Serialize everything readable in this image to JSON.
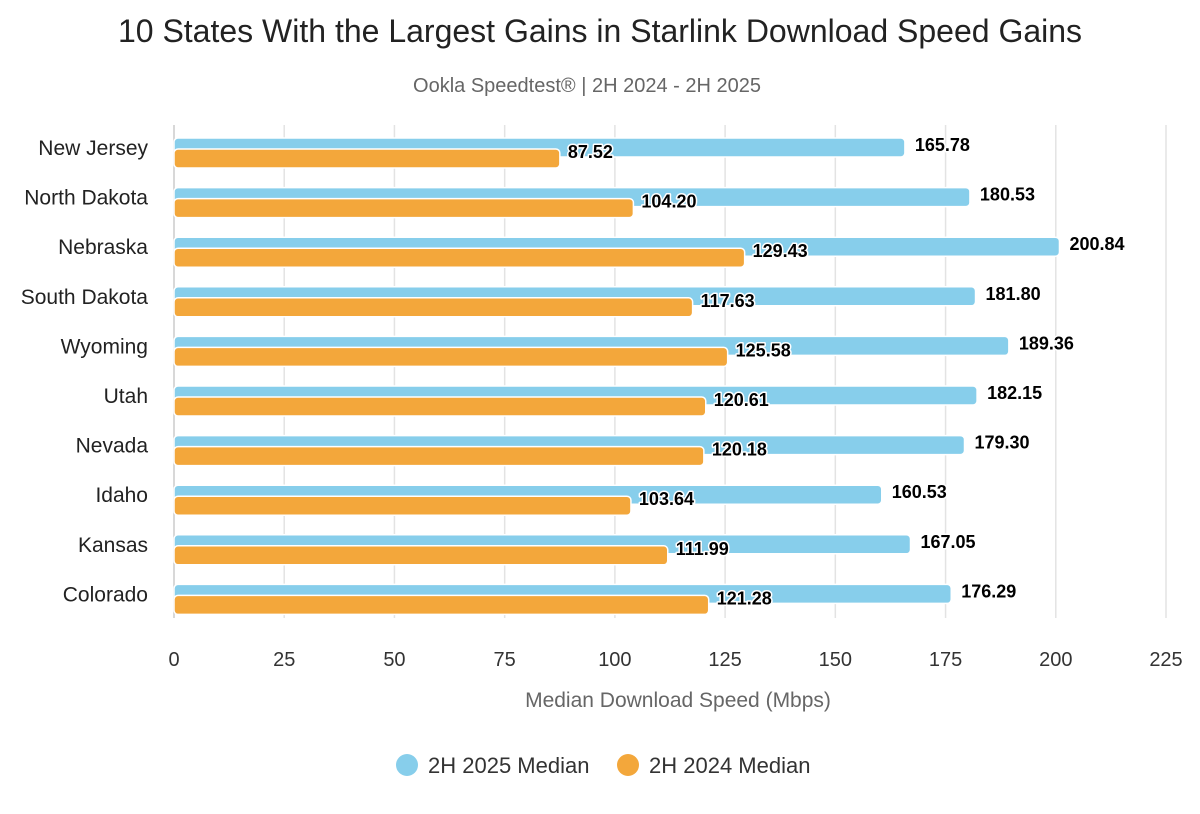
{
  "chart_data": {
    "type": "bar",
    "orientation": "horizontal",
    "title": "10 States With the Largest Gains in Starlink Download Speed Gains",
    "subtitle": "Ookla Speedtest® | 2H 2024 - 2H 2025",
    "xlabel": "Median Download Speed (Mbps)",
    "ylabel": "",
    "xlim": [
      0,
      225
    ],
    "x_ticks": [
      "0",
      "25",
      "50",
      "75",
      "100",
      "125",
      "150",
      "175",
      "200",
      "225"
    ],
    "grid": "vertical",
    "legend_position": "bottom",
    "categories": [
      "New Jersey",
      "North Dakota",
      "Nebraska",
      "South Dakota",
      "Wyoming",
      "Utah",
      "Nevada",
      "Idaho",
      "Kansas",
      "Colorado"
    ],
    "series": [
      {
        "name": "2H 2025 Median",
        "color": "#87ceeb",
        "values": [
          165.78,
          180.53,
          200.84,
          181.8,
          189.36,
          182.15,
          179.3,
          160.53,
          167.05,
          176.29
        ],
        "labels": [
          "165.78",
          "180.53",
          "200.84",
          "181.80",
          "189.36",
          "182.15",
          "179.30",
          "160.53",
          "167.05",
          "176.29"
        ]
      },
      {
        "name": "2H 2024 Median",
        "color": "#f3a73b",
        "values": [
          87.52,
          104.2,
          129.43,
          117.63,
          125.58,
          120.61,
          120.18,
          103.64,
          111.99,
          121.28
        ],
        "labels": [
          "87.52",
          "104.20",
          "129.43",
          "117.63",
          "125.58",
          "120.61",
          "120.18",
          "103.64",
          "111.99",
          "121.28"
        ]
      }
    ]
  }
}
